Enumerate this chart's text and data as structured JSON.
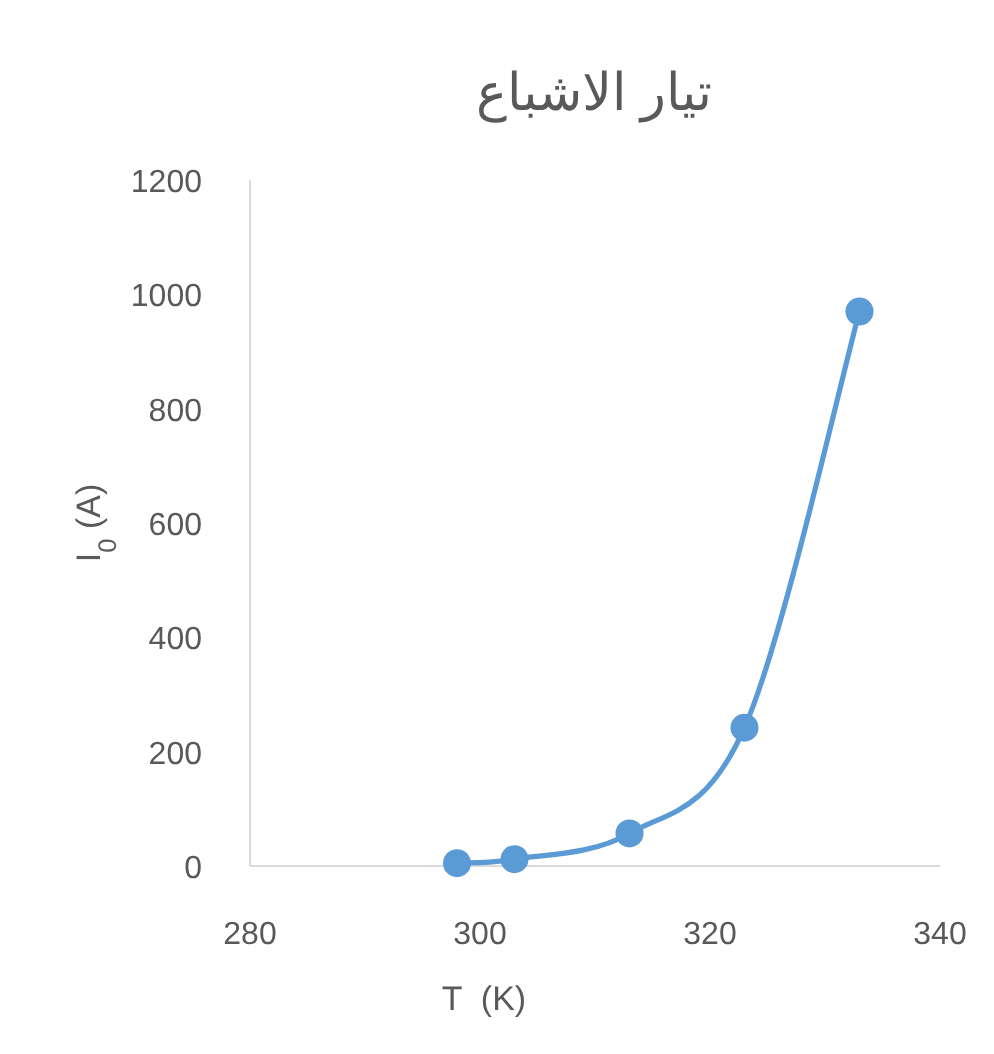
{
  "chart_data": {
    "type": "line",
    "title": "تيار الاشباع",
    "xlabel": "T  (K)",
    "ylabel": "I$_{0}$ (A)",
    "x": [
      298,
      303,
      313,
      323,
      333
    ],
    "series": [
      {
        "color": "#5b9bd5",
        "values": [
          5,
          12,
          57,
          242,
          970
        ]
      }
    ],
    "xlim": [
      280,
      340
    ],
    "xticks": [
      280,
      300,
      320,
      340
    ],
    "ylim": [
      0,
      1200
    ],
    "yticks": [
      0,
      200,
      400,
      600,
      800,
      1000,
      1200
    ],
    "marker": "circle",
    "line_style": "solid"
  }
}
